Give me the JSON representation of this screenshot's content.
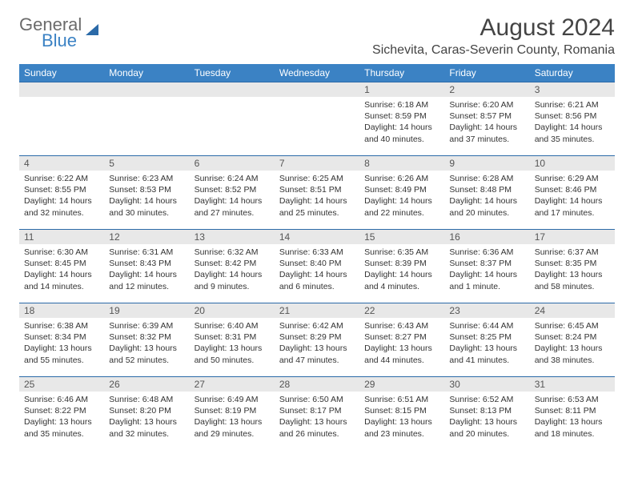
{
  "logo": {
    "text1": "General",
    "text2": "Blue"
  },
  "title": "August 2024",
  "location": "Sichevita, Caras-Severin County, Romania",
  "colors": {
    "header_bg": "#3b82c4",
    "header_text": "#ffffff",
    "daynum_bg": "#e8e8e8",
    "border": "#2b6aa8",
    "text": "#333333",
    "logo_gray": "#6b6b6b",
    "logo_blue": "#3b82c4"
  },
  "typography": {
    "title_fontsize": 30,
    "location_fontsize": 16,
    "header_fontsize": 12,
    "daynum_fontsize": 12,
    "body_fontsize": 10.5
  },
  "day_headers": [
    "Sunday",
    "Monday",
    "Tuesday",
    "Wednesday",
    "Thursday",
    "Friday",
    "Saturday"
  ],
  "weeks": [
    [
      {
        "blank": true
      },
      {
        "blank": true
      },
      {
        "blank": true
      },
      {
        "blank": true
      },
      {
        "num": "1",
        "sunrise": "Sunrise: 6:18 AM",
        "sunset": "Sunset: 8:59 PM",
        "daylight": "Daylight: 14 hours and 40 minutes."
      },
      {
        "num": "2",
        "sunrise": "Sunrise: 6:20 AM",
        "sunset": "Sunset: 8:57 PM",
        "daylight": "Daylight: 14 hours and 37 minutes."
      },
      {
        "num": "3",
        "sunrise": "Sunrise: 6:21 AM",
        "sunset": "Sunset: 8:56 PM",
        "daylight": "Daylight: 14 hours and 35 minutes."
      }
    ],
    [
      {
        "num": "4",
        "sunrise": "Sunrise: 6:22 AM",
        "sunset": "Sunset: 8:55 PM",
        "daylight": "Daylight: 14 hours and 32 minutes."
      },
      {
        "num": "5",
        "sunrise": "Sunrise: 6:23 AM",
        "sunset": "Sunset: 8:53 PM",
        "daylight": "Daylight: 14 hours and 30 minutes."
      },
      {
        "num": "6",
        "sunrise": "Sunrise: 6:24 AM",
        "sunset": "Sunset: 8:52 PM",
        "daylight": "Daylight: 14 hours and 27 minutes."
      },
      {
        "num": "7",
        "sunrise": "Sunrise: 6:25 AM",
        "sunset": "Sunset: 8:51 PM",
        "daylight": "Daylight: 14 hours and 25 minutes."
      },
      {
        "num": "8",
        "sunrise": "Sunrise: 6:26 AM",
        "sunset": "Sunset: 8:49 PM",
        "daylight": "Daylight: 14 hours and 22 minutes."
      },
      {
        "num": "9",
        "sunrise": "Sunrise: 6:28 AM",
        "sunset": "Sunset: 8:48 PM",
        "daylight": "Daylight: 14 hours and 20 minutes."
      },
      {
        "num": "10",
        "sunrise": "Sunrise: 6:29 AM",
        "sunset": "Sunset: 8:46 PM",
        "daylight": "Daylight: 14 hours and 17 minutes."
      }
    ],
    [
      {
        "num": "11",
        "sunrise": "Sunrise: 6:30 AM",
        "sunset": "Sunset: 8:45 PM",
        "daylight": "Daylight: 14 hours and 14 minutes."
      },
      {
        "num": "12",
        "sunrise": "Sunrise: 6:31 AM",
        "sunset": "Sunset: 8:43 PM",
        "daylight": "Daylight: 14 hours and 12 minutes."
      },
      {
        "num": "13",
        "sunrise": "Sunrise: 6:32 AM",
        "sunset": "Sunset: 8:42 PM",
        "daylight": "Daylight: 14 hours and 9 minutes."
      },
      {
        "num": "14",
        "sunrise": "Sunrise: 6:33 AM",
        "sunset": "Sunset: 8:40 PM",
        "daylight": "Daylight: 14 hours and 6 minutes."
      },
      {
        "num": "15",
        "sunrise": "Sunrise: 6:35 AM",
        "sunset": "Sunset: 8:39 PM",
        "daylight": "Daylight: 14 hours and 4 minutes."
      },
      {
        "num": "16",
        "sunrise": "Sunrise: 6:36 AM",
        "sunset": "Sunset: 8:37 PM",
        "daylight": "Daylight: 14 hours and 1 minute."
      },
      {
        "num": "17",
        "sunrise": "Sunrise: 6:37 AM",
        "sunset": "Sunset: 8:35 PM",
        "daylight": "Daylight: 13 hours and 58 minutes."
      }
    ],
    [
      {
        "num": "18",
        "sunrise": "Sunrise: 6:38 AM",
        "sunset": "Sunset: 8:34 PM",
        "daylight": "Daylight: 13 hours and 55 minutes."
      },
      {
        "num": "19",
        "sunrise": "Sunrise: 6:39 AM",
        "sunset": "Sunset: 8:32 PM",
        "daylight": "Daylight: 13 hours and 52 minutes."
      },
      {
        "num": "20",
        "sunrise": "Sunrise: 6:40 AM",
        "sunset": "Sunset: 8:31 PM",
        "daylight": "Daylight: 13 hours and 50 minutes."
      },
      {
        "num": "21",
        "sunrise": "Sunrise: 6:42 AM",
        "sunset": "Sunset: 8:29 PM",
        "daylight": "Daylight: 13 hours and 47 minutes."
      },
      {
        "num": "22",
        "sunrise": "Sunrise: 6:43 AM",
        "sunset": "Sunset: 8:27 PM",
        "daylight": "Daylight: 13 hours and 44 minutes."
      },
      {
        "num": "23",
        "sunrise": "Sunrise: 6:44 AM",
        "sunset": "Sunset: 8:25 PM",
        "daylight": "Daylight: 13 hours and 41 minutes."
      },
      {
        "num": "24",
        "sunrise": "Sunrise: 6:45 AM",
        "sunset": "Sunset: 8:24 PM",
        "daylight": "Daylight: 13 hours and 38 minutes."
      }
    ],
    [
      {
        "num": "25",
        "sunrise": "Sunrise: 6:46 AM",
        "sunset": "Sunset: 8:22 PM",
        "daylight": "Daylight: 13 hours and 35 minutes."
      },
      {
        "num": "26",
        "sunrise": "Sunrise: 6:48 AM",
        "sunset": "Sunset: 8:20 PM",
        "daylight": "Daylight: 13 hours and 32 minutes."
      },
      {
        "num": "27",
        "sunrise": "Sunrise: 6:49 AM",
        "sunset": "Sunset: 8:19 PM",
        "daylight": "Daylight: 13 hours and 29 minutes."
      },
      {
        "num": "28",
        "sunrise": "Sunrise: 6:50 AM",
        "sunset": "Sunset: 8:17 PM",
        "daylight": "Daylight: 13 hours and 26 minutes."
      },
      {
        "num": "29",
        "sunrise": "Sunrise: 6:51 AM",
        "sunset": "Sunset: 8:15 PM",
        "daylight": "Daylight: 13 hours and 23 minutes."
      },
      {
        "num": "30",
        "sunrise": "Sunrise: 6:52 AM",
        "sunset": "Sunset: 8:13 PM",
        "daylight": "Daylight: 13 hours and 20 minutes."
      },
      {
        "num": "31",
        "sunrise": "Sunrise: 6:53 AM",
        "sunset": "Sunset: 8:11 PM",
        "daylight": "Daylight: 13 hours and 18 minutes."
      }
    ]
  ]
}
